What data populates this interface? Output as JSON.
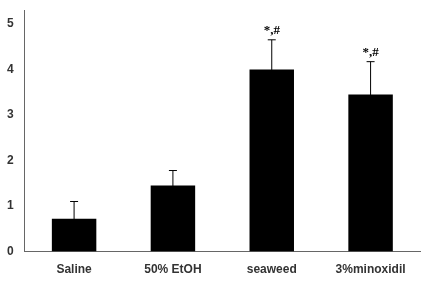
{
  "chart_data": {
    "type": "bar",
    "categories": [
      "Saline",
      "50% EtOH",
      "seaweed",
      "3%minoxidil"
    ],
    "values": [
      0.72,
      1.45,
      4.0,
      3.45
    ],
    "errors": [
      0.38,
      0.33,
      0.65,
      0.72
    ],
    "annotations": [
      null,
      null,
      "*,#",
      "*,#"
    ],
    "color": "#000000",
    "ylim": [
      0,
      5.3
    ],
    "yticks": [
      0,
      1,
      2,
      3,
      4,
      5
    ],
    "grid": false
  }
}
